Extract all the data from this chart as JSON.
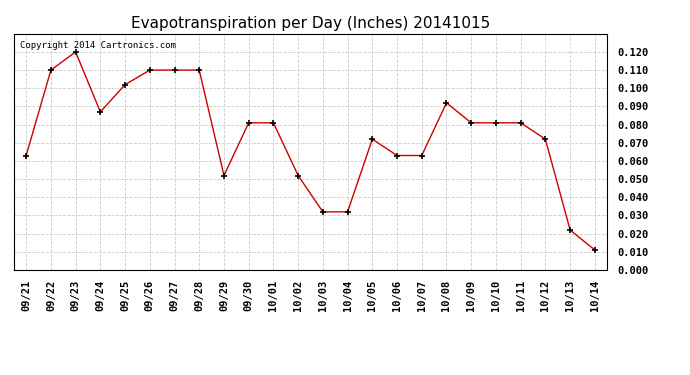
{
  "title": "Evapotranspiration per Day (Inches) 20141015",
  "copyright_text": "Copyright 2014 Cartronics.com",
  "dates": [
    "09/21",
    "09/22",
    "09/23",
    "09/24",
    "09/25",
    "09/26",
    "09/27",
    "09/28",
    "09/29",
    "09/30",
    "10/01",
    "10/02",
    "10/03",
    "10/04",
    "10/05",
    "10/06",
    "10/07",
    "10/08",
    "10/09",
    "10/10",
    "10/11",
    "10/12",
    "10/13",
    "10/14"
  ],
  "values": [
    0.063,
    0.11,
    0.12,
    0.087,
    0.102,
    0.11,
    0.11,
    0.11,
    0.052,
    0.081,
    0.081,
    0.052,
    0.032,
    0.032,
    0.072,
    0.063,
    0.063,
    0.092,
    0.081,
    0.081,
    0.081,
    0.072,
    0.022,
    0.011
  ],
  "line_color": "#cc0000",
  "marker_color": "#000000",
  "background_color": "#ffffff",
  "grid_color": "#cccccc",
  "ylim": [
    0.0,
    0.13
  ],
  "yticks": [
    0.0,
    0.01,
    0.02,
    0.03,
    0.04,
    0.05,
    0.06,
    0.07,
    0.08,
    0.09,
    0.1,
    0.11,
    0.12
  ],
  "title_fontsize": 11,
  "copyright_fontsize": 6.5,
  "tick_fontsize": 7.5,
  "legend_fontsize": 8,
  "legend_bg": "#cc0000",
  "legend_fg": "#ffffff"
}
